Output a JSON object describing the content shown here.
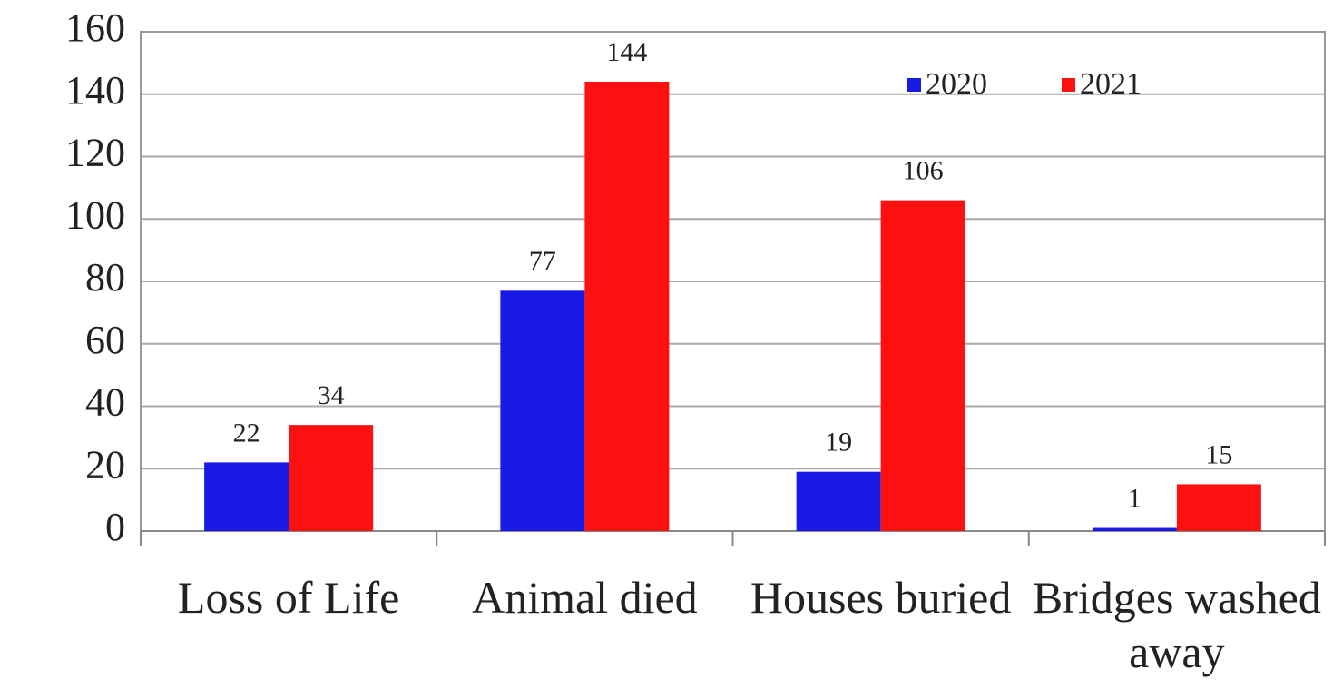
{
  "chart_data": {
    "type": "bar",
    "categories": [
      "Loss of Life",
      "Animal died",
      "Houses buried",
      "Bridges washed away"
    ],
    "series": [
      {
        "name": "2020",
        "color": "#1a1ae6",
        "values": [
          22,
          77,
          19,
          1
        ]
      },
      {
        "name": "2021",
        "color": "#ff1010",
        "values": [
          34,
          144,
          106,
          15
        ]
      }
    ],
    "ylim": [
      0,
      160
    ],
    "yticks": [
      0,
      20,
      40,
      60,
      80,
      100,
      120,
      140,
      160
    ],
    "grid": true,
    "legend": "top-right",
    "data_labels": true
  }
}
